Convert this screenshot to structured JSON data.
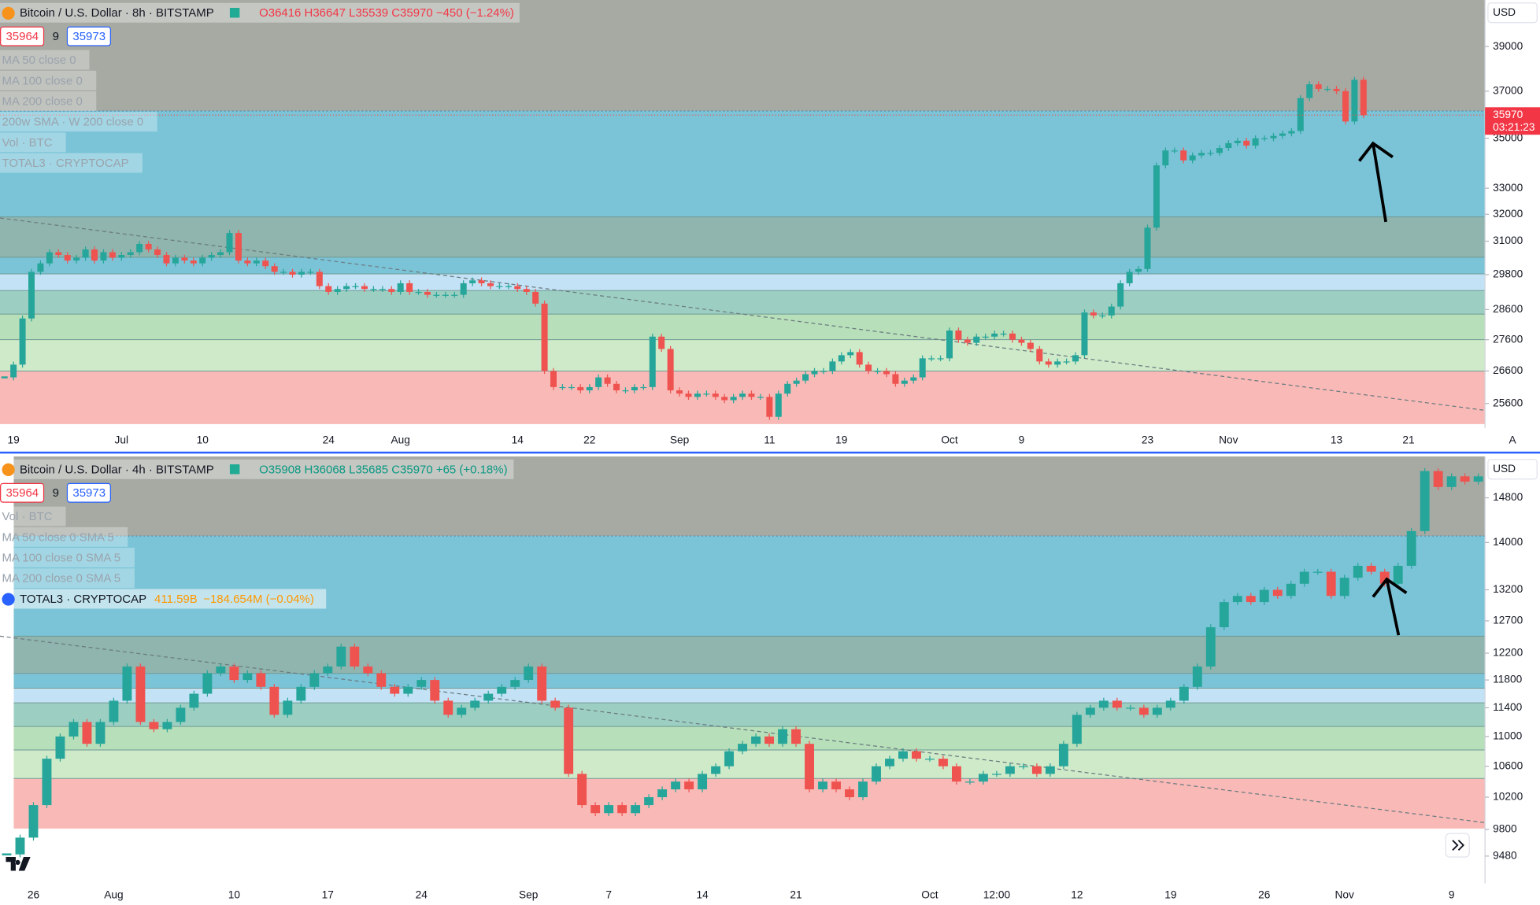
{
  "chart_data": [
    {
      "type": "candlestick",
      "title": "Bitcoin / U.S. Dollar · 8h · BITSTAMP",
      "ohlc": "O36416 H36647 L35539 C35970 −450 (−1.24%)",
      "legend_color": "#f23645",
      "bid": "35964",
      "spread": "9",
      "ask": "35973",
      "currency": "USD",
      "last_price": "35970",
      "countdown": "03:21:23",
      "indicators": [
        {
          "name": "MA 50 close 0"
        },
        {
          "name": "MA 100 close 0"
        },
        {
          "name": "MA 200 close 0"
        },
        {
          "name": "200w SMA · W 200 close 0"
        },
        {
          "name": "Vol · BTC"
        },
        {
          "name": "TOTAL3 · CRYPTOCAP"
        }
      ],
      "log": true,
      "up_color": "#26a69a",
      "down_color": "#ef5350",
      "ylim": [
        24870,
        41200
      ],
      "yticks": [
        25600,
        26600,
        27600,
        28600,
        29800,
        31000,
        32000,
        33000,
        35000,
        37000,
        39000
      ],
      "categories": [
        null,
        "19",
        null,
        null,
        null,
        null,
        null,
        null,
        null,
        null,
        null,
        null,
        null,
        "Jul",
        null,
        null,
        null,
        null,
        null,
        null,
        null,
        null,
        "10",
        null,
        null,
        null,
        null,
        null,
        null,
        null,
        null,
        null,
        null,
        null,
        null,
        null,
        "24",
        null,
        null,
        null,
        null,
        null,
        null,
        null,
        "Aug",
        null,
        null,
        null,
        null,
        null,
        null,
        null,
        null,
        null,
        null,
        null,
        null,
        "14",
        null,
        null,
        null,
        null,
        null,
        null,
        null,
        "22",
        null,
        null,
        null,
        null,
        null,
        null,
        null,
        null,
        null,
        "Sep",
        null,
        null,
        null,
        null,
        null,
        null,
        null,
        null,
        null,
        "11",
        null,
        null,
        null,
        null,
        null,
        null,
        null,
        "19",
        null,
        null,
        null,
        null,
        null,
        null,
        null,
        null,
        null,
        null,
        null,
        "Oct",
        null,
        null,
        null,
        null,
        null,
        null,
        null,
        "9",
        null,
        null,
        null,
        null,
        null,
        null,
        null,
        null,
        null,
        null,
        null,
        null,
        null,
        "23",
        null,
        null,
        null,
        null,
        null,
        null,
        null,
        null,
        "Nov",
        null,
        null,
        null,
        null,
        null,
        null,
        null,
        null,
        null,
        null,
        null,
        "13",
        null,
        null,
        null,
        null,
        null,
        null,
        null,
        "21",
        null,
        null,
        null,
        null,
        null,
        null,
        null,
        null
      ],
      "values": [
        26400,
        26800,
        28300,
        29900,
        30200,
        30600,
        30500,
        30300,
        30400,
        30700,
        30300,
        30600,
        30400,
        30500,
        30600,
        30900,
        30700,
        30500,
        30200,
        30400,
        30300,
        30200,
        30400,
        30500,
        30600,
        31300,
        30300,
        30200,
        30300,
        30100,
        29900,
        29900,
        29800,
        29900,
        29900,
        29400,
        29200,
        29300,
        29400,
        29400,
        29300,
        29300,
        29300,
        29200,
        29500,
        29200,
        29200,
        29100,
        29100,
        29100,
        29100,
        29500,
        29600,
        29500,
        29400,
        29400,
        29400,
        29300,
        29200,
        28800,
        26600,
        26100,
        26100,
        26100,
        26000,
        26100,
        26400,
        26200,
        26000,
        26000,
        26100,
        26100,
        27700,
        27300,
        26000,
        25900,
        25800,
        25900,
        25900,
        25800,
        25700,
        25800,
        25900,
        25800,
        25800,
        25200,
        25900,
        26200,
        26300,
        26500,
        26600,
        26600,
        26900,
        27100,
        27200,
        26800,
        26600,
        26600,
        26500,
        26200,
        26300,
        26400,
        27000,
        27000,
        27000,
        27900,
        27600,
        27500,
        27700,
        27700,
        27800,
        27800,
        27600,
        27500,
        27300,
        26900,
        26800,
        26900,
        26900,
        27100,
        28500,
        28400,
        28400,
        28700,
        29500,
        29900,
        30000,
        31500,
        33900,
        34500,
        34500,
        34100,
        34300,
        34400,
        34400,
        34600,
        34800,
        34900,
        34700,
        35000,
        35000,
        35100,
        35200,
        35300,
        36700,
        37300,
        37100,
        37100,
        37000,
        35700,
        37500,
        35970,
        null,
        null,
        null,
        null,
        null,
        null,
        null,
        null,
        null,
        null,
        null,
        null,
        null
      ]
    },
    {
      "type": "candlestick",
      "title": "Bitcoin / U.S. Dollar · 4h · BITSTAMP",
      "ohlc": "O35908 H36068 L35685 C35970 +65 (+0.18%)",
      "legend_color": "#089981",
      "bid": "35964",
      "spread": "9",
      "ask": "35973",
      "currency": "USD",
      "indicators": [
        {
          "name": "Vol · BTC"
        },
        {
          "name": "MA 50 close 0 SMA 5"
        },
        {
          "name": "MA 100 close 0 SMA 5"
        },
        {
          "name": "MA 200 close 0 SMA 5"
        },
        {
          "name": "TOTAL3 · CRYPTOCAP",
          "readout": [
            "411.59B",
            "−184.654M (−0.04%)"
          ]
        }
      ],
      "log": true,
      "up_color": "#26a69a",
      "down_color": "#ef5350",
      "ylim": [
        9162,
        15580
      ],
      "yticks": [
        9480,
        9800,
        10200,
        10600,
        11000,
        11400,
        11800,
        12200,
        12700,
        13200,
        14000,
        14800
      ],
      "categories": [
        null,
        null,
        "26",
        null,
        null,
        null,
        null,
        null,
        "Aug",
        null,
        null,
        null,
        null,
        null,
        null,
        null,
        null,
        "10",
        null,
        null,
        null,
        null,
        null,
        null,
        "17",
        null,
        null,
        null,
        null,
        null,
        null,
        "24",
        null,
        null,
        null,
        null,
        null,
        null,
        null,
        "Sep",
        null,
        null,
        null,
        null,
        null,
        "7",
        null,
        null,
        null,
        null,
        null,
        null,
        "14",
        null,
        null,
        null,
        null,
        null,
        null,
        "21",
        null,
        null,
        null,
        null,
        null,
        null,
        null,
        null,
        null,
        "Oct",
        null,
        null,
        null,
        null,
        "12:00",
        null,
        null,
        null,
        null,
        null,
        "12",
        null,
        null,
        null,
        null,
        null,
        null,
        "19",
        null,
        null,
        null,
        null,
        null,
        null,
        "26",
        null,
        null,
        null,
        null,
        null,
        "Nov",
        null,
        null,
        null,
        null,
        null,
        null,
        null,
        "9",
        null,
        null
      ],
      "values": [
        9500,
        9700,
        10100,
        10700,
        11000,
        11200,
        10900,
        11200,
        11500,
        12000,
        11200,
        11100,
        11200,
        11400,
        11600,
        11900,
        12000,
        11800,
        11900,
        11700,
        11300,
        11500,
        11700,
        11900,
        12000,
        12300,
        12000,
        11900,
        11700,
        11600,
        11700,
        11800,
        11500,
        11300,
        11400,
        11500,
        11600,
        11700,
        11800,
        12000,
        11500,
        11400,
        10500,
        10100,
        10000,
        10100,
        10000,
        10100,
        10200,
        10300,
        10400,
        10300,
        10500,
        10600,
        10800,
        10900,
        11000,
        10900,
        11100,
        10900,
        10300,
        10400,
        10300,
        10200,
        10400,
        10600,
        10700,
        10800,
        10700,
        10700,
        10600,
        10400,
        10400,
        10500,
        10500,
        10600,
        10600,
        10500,
        10600,
        10900,
        11300,
        11400,
        11500,
        11400,
        11400,
        11300,
        11400,
        11500,
        11700,
        12000,
        12600,
        13000,
        13100,
        13000,
        13200,
        13100,
        13300,
        13500,
        13500,
        13100,
        13400,
        13600,
        13500,
        13300,
        13600,
        14200,
        15300,
        15000,
        15200,
        15100,
        15200
      ]
    }
  ],
  "ui": {
    "auto_button": "A"
  }
}
